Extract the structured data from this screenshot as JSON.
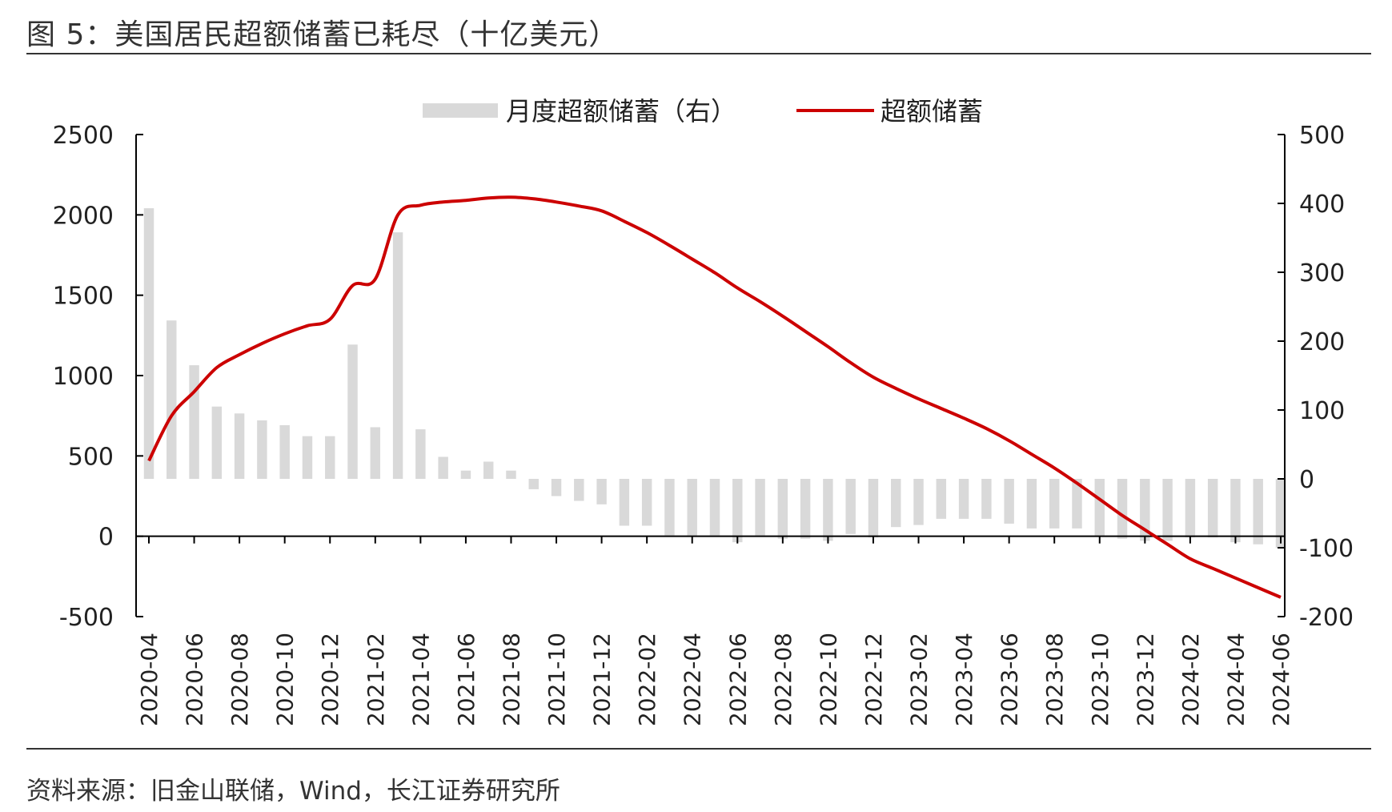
{
  "title": "图  5：美国居民超额储蓄已耗尽（十亿美元）",
  "source": "资料来源：旧金山联储，Wind，长江证券研究所",
  "chart_data": {
    "type": "bar+line",
    "legend": {
      "placement": "top-center",
      "bar_label": "月度超额储蓄（右）",
      "line_label": "超额储蓄"
    },
    "colors": {
      "bar": "#d9d9d9",
      "line": "#cc0000",
      "axis": "#000000"
    },
    "y_left": {
      "range": [
        -500,
        2500
      ],
      "ticks": [
        "2500",
        "2000",
        "1500",
        "1000",
        "500",
        "0",
        "-500"
      ]
    },
    "y_right": {
      "range": [
        -200,
        500
      ],
      "ticks": [
        "500",
        "400",
        "300",
        "200",
        "100",
        "0",
        "-100",
        "-200"
      ]
    },
    "x_ticks": [
      "2020-04",
      "2020-06",
      "2020-08",
      "2020-10",
      "2020-12",
      "2021-02",
      "2021-04",
      "2021-06",
      "2021-08",
      "2021-10",
      "2021-12",
      "2022-02",
      "2022-04",
      "2022-06",
      "2022-08",
      "2022-10",
      "2022-12",
      "2023-02",
      "2023-04",
      "2023-06",
      "2023-08",
      "2023-10",
      "2023-12",
      "2024-02",
      "2024-04",
      "2024-06"
    ],
    "x": [
      "2020-04",
      "2020-05",
      "2020-06",
      "2020-07",
      "2020-08",
      "2020-09",
      "2020-10",
      "2020-11",
      "2020-12",
      "2021-01",
      "2021-02",
      "2021-03",
      "2021-04",
      "2021-05",
      "2021-06",
      "2021-07",
      "2021-08",
      "2021-09",
      "2021-10",
      "2021-11",
      "2021-12",
      "2022-01",
      "2022-02",
      "2022-03",
      "2022-04",
      "2022-05",
      "2022-06",
      "2022-07",
      "2022-08",
      "2022-09",
      "2022-10",
      "2022-11",
      "2022-12",
      "2023-01",
      "2023-02",
      "2023-03",
      "2023-04",
      "2023-05",
      "2023-06",
      "2023-07",
      "2023-08",
      "2023-09",
      "2023-10",
      "2023-11",
      "2023-12",
      "2024-01",
      "2024-02",
      "2024-03",
      "2024-04",
      "2024-05",
      "2024-06"
    ],
    "series": [
      {
        "name": "月度超额储蓄（右）",
        "type": "bar",
        "axis": "right",
        "values": [
          393,
          230,
          165,
          105,
          95,
          85,
          78,
          62,
          62,
          195,
          75,
          358,
          72,
          32,
          12,
          25,
          12,
          -15,
          -25,
          -32,
          -37,
          -68,
          -68,
          -82,
          -82,
          -82,
          -92,
          -82,
          -87,
          -87,
          -90,
          -80,
          -85,
          -70,
          -67,
          -58,
          -58,
          -58,
          -65,
          -72,
          -72,
          -72,
          -84,
          -87,
          -90,
          -90,
          -85,
          -85,
          -92,
          -95,
          -100
        ]
      },
      {
        "name": "超额储蓄",
        "type": "line",
        "axis": "left",
        "values": [
          470,
          750,
          900,
          1050,
          1130,
          1200,
          1260,
          1310,
          1350,
          1560,
          1600,
          2000,
          2060,
          2080,
          2090,
          2105,
          2110,
          2100,
          2080,
          2055,
          2025,
          1960,
          1890,
          1810,
          1725,
          1640,
          1545,
          1460,
          1370,
          1275,
          1180,
          1080,
          990,
          920,
          855,
          795,
          735,
          670,
          595,
          510,
          425,
          330,
          230,
          130,
          40,
          -50,
          -140,
          -200,
          -260,
          -320,
          -380
        ]
      }
    ]
  }
}
